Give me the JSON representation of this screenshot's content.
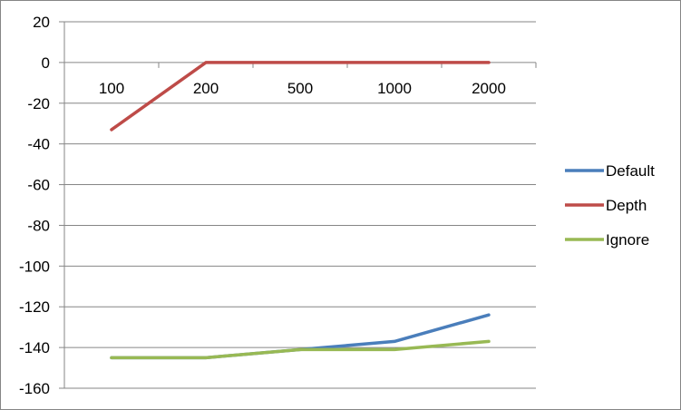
{
  "chart_data": {
    "type": "line",
    "title": "",
    "xlabel": "",
    "ylabel": "",
    "categories": [
      "100",
      "200",
      "500",
      "1000",
      "2000"
    ],
    "ylim": [
      -160,
      20
    ],
    "y_ticks": [
      "20",
      "0",
      "-20",
      "-40",
      "-60",
      "-80",
      "-100",
      "-120",
      "-140",
      "-160"
    ],
    "grid": true,
    "legend_position": "right",
    "series": [
      {
        "name": "Default",
        "color": "#4a7ebb",
        "values": [
          -145,
          -145,
          -141,
          -137,
          -124
        ]
      },
      {
        "name": "Depth",
        "color": "#be4b48",
        "values": [
          -33,
          0,
          0,
          0,
          0
        ]
      },
      {
        "name": "Ignore",
        "color": "#98b954",
        "values": [
          -145,
          -145,
          -141,
          -141,
          -137
        ]
      }
    ]
  }
}
